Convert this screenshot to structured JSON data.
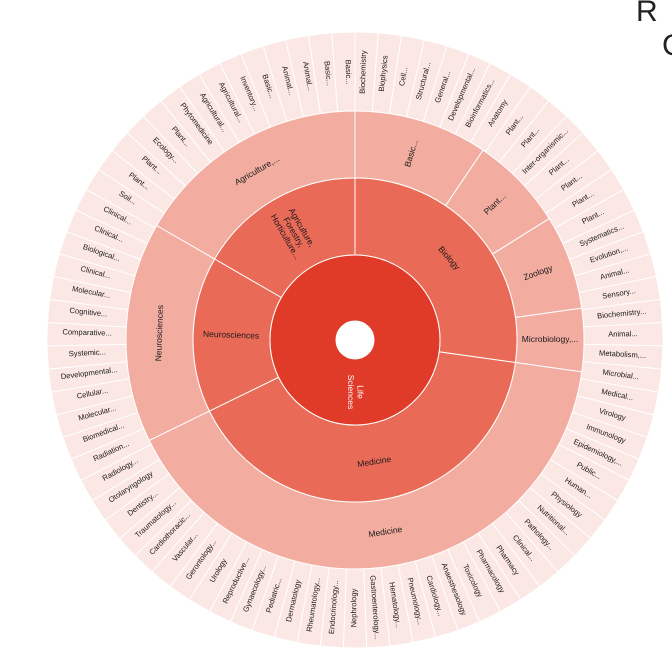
{
  "corner": {
    "top_text": "R",
    "second_text": "C"
  },
  "colors": {
    "center_hole": "#ffffff",
    "level1": "#e03a28",
    "level2": "#e96a57",
    "level3": "#f2ada0",
    "level4": "#fbe7e4",
    "stroke": "#ffffff"
  },
  "chart_data": {
    "type": "sunburst",
    "levels": [
      {
        "name": "Life Sciences",
        "depth": 1,
        "start_deg": 0,
        "end_deg": 360
      }
    ],
    "level2": [
      {
        "name": "Biology",
        "start_deg": 0,
        "end_deg": 98
      },
      {
        "name": "Medicine",
        "start_deg": 98,
        "end_deg": 244
      },
      {
        "name": "Neurosciences",
        "start_deg": 244,
        "end_deg": 300
      },
      {
        "name": "Agriculture, Forestry, Horticulture...",
        "start_deg": 300,
        "end_deg": 360
      }
    ],
    "level3": [
      {
        "name": "Basic...",
        "start_deg": 0,
        "end_deg": 34,
        "parent": "Biology"
      },
      {
        "name": "Plant...",
        "start_deg": 34,
        "end_deg": 58,
        "parent": "Biology"
      },
      {
        "name": "Zoology",
        "start_deg": 58,
        "end_deg": 82,
        "parent": "Biology"
      },
      {
        "name": "Microbiology,...",
        "start_deg": 82,
        "end_deg": 98,
        "parent": "Biology"
      },
      {
        "name": "Medicine",
        "start_deg": 98,
        "end_deg": 244,
        "parent": "Medicine"
      },
      {
        "name": "Neurosciences",
        "start_deg": 244,
        "end_deg": 300,
        "parent": "Neurosciences"
      },
      {
        "name": "Agriculture,...",
        "start_deg": 300,
        "end_deg": 360,
        "parent": "Agriculture, Forestry, Horticulture..."
      }
    ],
    "outer_labels": [
      "Biochemistry",
      "Biophysics",
      "Cell...",
      "Structural...",
      "General...",
      "Developmental...",
      "Bioinformatics...",
      "Anatomy",
      "Plant...",
      "Plant...",
      "Inter-organismic...",
      "Plant...",
      "Plant...",
      "Plant...",
      "Plant...",
      "Systematics...",
      "Evolution,...",
      "Animal...",
      "Sensory...",
      "Biochemistry...",
      "Animal...",
      "Metabolism,...",
      "Microbial...",
      "Medical...",
      "Virology",
      "Immunology",
      "Epidemiology,...",
      "Public...",
      "Human...",
      "Physiology",
      "Nutritional...",
      "Pathology...",
      "Clinical...",
      "Pharmacy",
      "Pharmacology",
      "Toxicology",
      "Anaesthesiology",
      "Cardiology...",
      "Pneumology...",
      "Hematology...",
      "Gastroenterology...",
      "Nephrology",
      "Endocrinology...",
      "Rheumatology...",
      "Dermatology",
      "Pediatric...",
      "Gynaecology...",
      "Reproductive...",
      "Urology",
      "Gerontology...",
      "Vascular...",
      "Cardiothoracic...",
      "Traumatology...",
      "Dentistry...",
      "Otolaryngology",
      "Radiology...",
      "Radiation...",
      "Biomedical...",
      "Molecular...",
      "Cellular...",
      "Developmental...",
      "Systemic...",
      "Comparative...",
      "Cognitive...",
      "Molecular...",
      "Clinical...",
      "Biological...",
      "Clinical...",
      "Clinical...",
      "Soil...",
      "Plant...",
      "Plant...",
      "Ecology...",
      "Plant...",
      "Phytomedicine",
      "Agricultural...",
      "Agricultural...",
      "Inventory...",
      "Basic...",
      "Animal...",
      "Animal...",
      "Basic...",
      "Basic..."
    ],
    "outer_label_start_deg": 1.8,
    "outer_label_end_deg": 358.5
  }
}
